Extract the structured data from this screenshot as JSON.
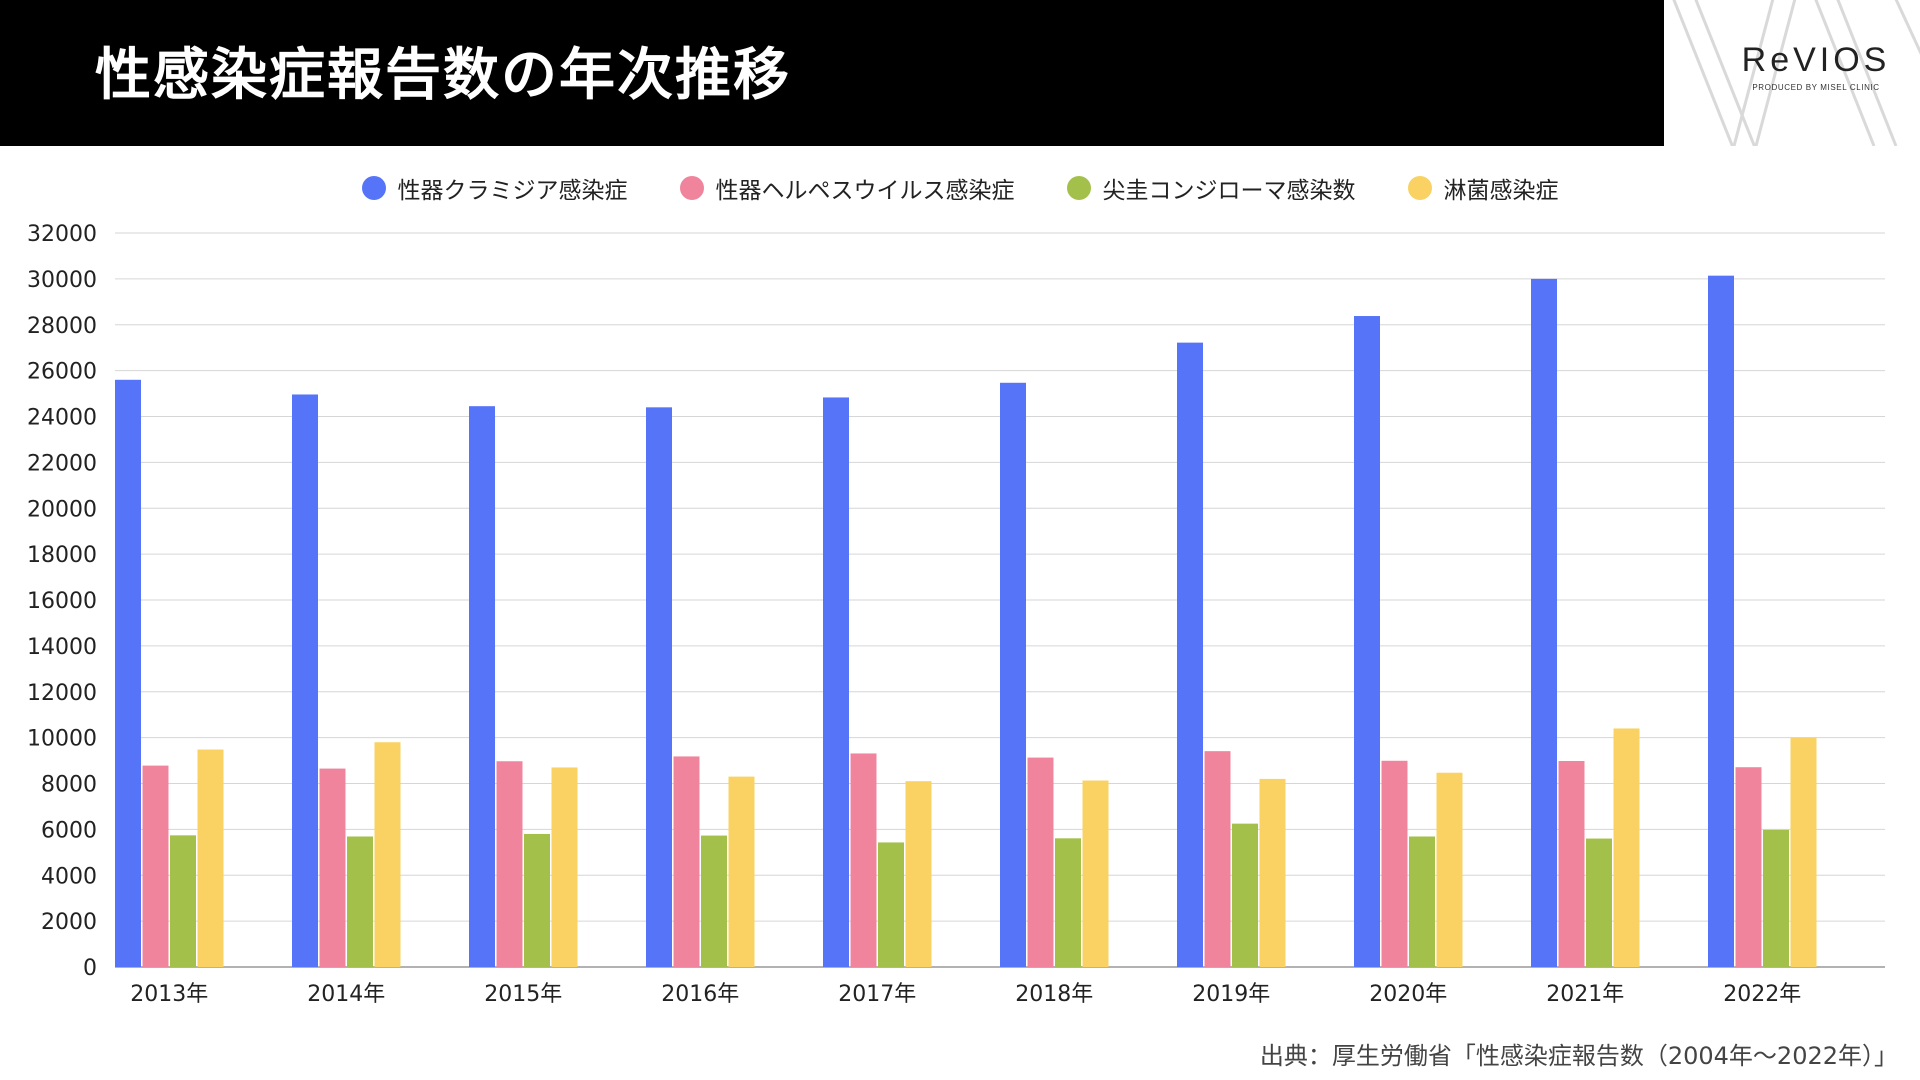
{
  "header": {
    "title": "性感染症報告数の年次推移"
  },
  "logo": {
    "name": "ReVIOS",
    "tagline": "PRODUCED BY MISEL CLINIC"
  },
  "source": "出典：厚生労働省「性感染症報告数（2004年〜2022年）」",
  "chart_data": {
    "type": "bar",
    "title": "",
    "xlabel": "",
    "ylabel": "",
    "ylim": [
      0,
      32000
    ],
    "yticks": [
      0,
      2000,
      4000,
      6000,
      8000,
      10000,
      12000,
      14000,
      16000,
      18000,
      20000,
      22000,
      24000,
      26000,
      28000,
      30000,
      32000
    ],
    "grid": true,
    "legend_position": "top",
    "categories": [
      "2013年",
      "2014年",
      "2015年",
      "2016年",
      "2017年",
      "2018年",
      "2019年",
      "2020年",
      "2021年",
      "2022年"
    ],
    "series": [
      {
        "name": "性器クラミジア感染症",
        "color": "#5574f7",
        "values": [
          25600,
          24960,
          24450,
          24400,
          24830,
          25470,
          27220,
          28380,
          30000,
          30140
        ]
      },
      {
        "name": "性器ヘルペスウイルス感染症",
        "color": "#f0849c",
        "values": [
          8780,
          8650,
          8970,
          9180,
          9310,
          9130,
          9410,
          8990,
          8980,
          8710
        ]
      },
      {
        "name": "尖圭コンジローマ感染数",
        "color": "#a3c14a",
        "values": [
          5740,
          5690,
          5800,
          5730,
          5430,
          5610,
          6250,
          5690,
          5600,
          5980
        ]
      },
      {
        "name": "淋菌感染症",
        "color": "#f9d263",
        "values": [
          9480,
          9800,
          8700,
          8300,
          8100,
          8130,
          8200,
          8470,
          10400,
          10010
        ]
      }
    ]
  }
}
